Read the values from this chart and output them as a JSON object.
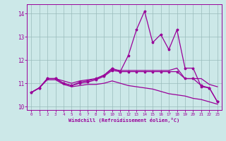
{
  "x": [
    0,
    1,
    2,
    3,
    4,
    5,
    6,
    7,
    8,
    9,
    10,
    11,
    12,
    13,
    14,
    15,
    16,
    17,
    18,
    19,
    20,
    21,
    22,
    23
  ],
  "line_spiky": [
    10.6,
    10.8,
    11.2,
    11.2,
    11.0,
    10.9,
    11.05,
    11.1,
    11.2,
    11.35,
    11.65,
    11.5,
    12.2,
    13.3,
    14.1,
    12.75,
    13.1,
    12.45,
    13.3,
    11.65,
    11.65,
    10.85,
    10.8,
    10.2
  ],
  "line_flat_upper": [
    10.6,
    10.8,
    11.2,
    11.2,
    11.1,
    11.0,
    11.1,
    11.15,
    11.2,
    11.35,
    11.6,
    11.55,
    11.55,
    11.55,
    11.55,
    11.55,
    11.55,
    11.55,
    11.65,
    11.2,
    11.2,
    11.2,
    10.95,
    10.85
  ],
  "line_flat_lower": [
    10.6,
    10.8,
    11.2,
    11.2,
    11.0,
    10.9,
    11.0,
    11.05,
    11.15,
    11.3,
    11.55,
    11.5,
    11.5,
    11.5,
    11.5,
    11.5,
    11.5,
    11.5,
    11.5,
    11.2,
    11.2,
    10.9,
    10.8,
    10.2
  ],
  "line_bottom": [
    10.6,
    10.8,
    11.15,
    11.15,
    10.95,
    10.85,
    10.9,
    10.95,
    10.95,
    11.0,
    11.1,
    11.0,
    10.9,
    10.85,
    10.8,
    10.75,
    10.65,
    10.55,
    10.5,
    10.45,
    10.35,
    10.3,
    10.2,
    10.1
  ],
  "color": "#990099",
  "bg_color": "#cce8e8",
  "grid_color": "#99bbbb",
  "xlabel": "Windchill (Refroidissement éolien,°C)",
  "ylim": [
    9.85,
    14.4
  ],
  "xlim": [
    -0.5,
    23.5
  ],
  "yticks": [
    10,
    11,
    12,
    13,
    14
  ],
  "xticks": [
    0,
    1,
    2,
    3,
    4,
    5,
    6,
    7,
    8,
    9,
    10,
    11,
    12,
    13,
    14,
    15,
    16,
    17,
    18,
    19,
    20,
    21,
    22,
    23
  ],
  "label_color": "#990099",
  "tick_color": "#990099",
  "spine_color": "#990099"
}
